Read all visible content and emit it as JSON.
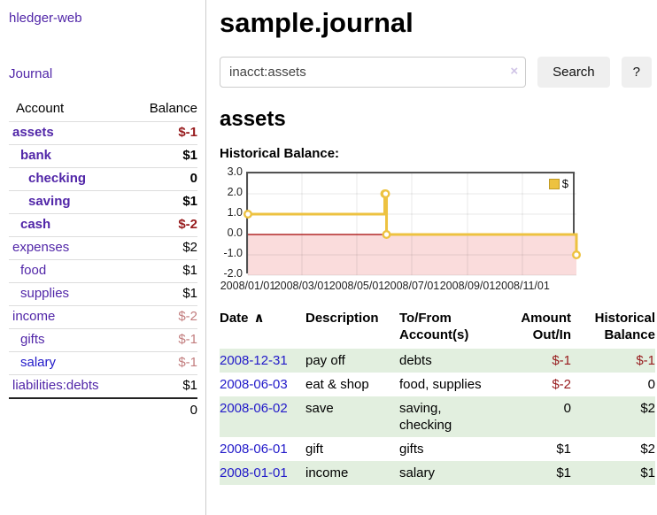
{
  "colors": {
    "link_purple": "#5126a8",
    "link_blue": "#2119c9",
    "negative_strong": "#971b1d",
    "negative_muted": "#c27d7e",
    "row_stripe_green": "#e2efdf",
    "button_gray": "#efefef",
    "chart_line_gold": "#EDC240",
    "chart_negative_fill": "#fadcdc",
    "chart_zero_line": "#a40000"
  },
  "sidebar": {
    "brand": "hledger-web",
    "journal_label": "Journal",
    "account_header": "Account",
    "balance_header": "Balance",
    "rows": [
      {
        "account": "assets",
        "balance": "$-1",
        "depth": 1,
        "bold": true,
        "balance_class": "neg-strong"
      },
      {
        "account": "bank",
        "balance": "$1",
        "depth": 2,
        "bold": true,
        "balance_class": ""
      },
      {
        "account": "checking",
        "balance": "0",
        "depth": 3,
        "bold": true,
        "balance_class": ""
      },
      {
        "account": "saving",
        "balance": "$1",
        "depth": 3,
        "bold": true,
        "balance_class": ""
      },
      {
        "account": "cash",
        "balance": "$-2",
        "depth": 2,
        "bold": true,
        "balance_class": "neg-strong"
      },
      {
        "account": "expenses",
        "balance": "$2",
        "depth": 1,
        "bold": false,
        "balance_class": ""
      },
      {
        "account": "food",
        "balance": "$1",
        "depth": 2,
        "bold": false,
        "balance_class": ""
      },
      {
        "account": "supplies",
        "balance": "$1",
        "depth": 2,
        "bold": false,
        "balance_class": ""
      },
      {
        "account": "income",
        "balance": "$-2",
        "depth": 1,
        "bold": false,
        "balance_class": "neg-muted"
      },
      {
        "account": "gifts",
        "balance": "$-1",
        "depth": 2,
        "bold": false,
        "balance_class": "neg-muted"
      },
      {
        "account": "salary",
        "balance": "$-1",
        "depth": 2,
        "bold": false,
        "balance_class": "neg-muted",
        "link_color": "blue"
      },
      {
        "account": "liabilities:debts",
        "balance": "$1",
        "depth": 1,
        "bold": false,
        "balance_class": ""
      }
    ],
    "total": "0"
  },
  "main": {
    "title": "sample.journal",
    "search": {
      "value": "inacct:assets",
      "clear_icon": "×",
      "button_label": "Search",
      "help_label": "?"
    },
    "account_heading": "assets",
    "chart_label": "Historical Balance:"
  },
  "chart_data": {
    "type": "line",
    "title": "Historical Balance:",
    "step": true,
    "xlim": [
      "2008-01-01",
      "2008-12-31"
    ],
    "ylim": [
      -2,
      3
    ],
    "yticks": [
      "3.0",
      "2.0",
      "1.0",
      "0.0",
      "-1.0",
      "-2.0"
    ],
    "xticks": [
      "2008/01/01",
      "2008/03/01",
      "2008/05/01",
      "2008/07/01",
      "2008/09/01",
      "2008/11/01"
    ],
    "grid": true,
    "legend_position": "top-right",
    "series": [
      {
        "name": "$",
        "color": "#EDC240",
        "points": [
          [
            "2008-01-01",
            1
          ],
          [
            "2008-06-01",
            2
          ],
          [
            "2008-06-02",
            2
          ],
          [
            "2008-06-03",
            0
          ],
          [
            "2008-12-31",
            -1
          ]
        ]
      }
    ],
    "negative_region_fill": "#fadcdc",
    "zero_line_color": "#a40000"
  },
  "register": {
    "sort_icon": "∧",
    "columns": [
      {
        "label": "Date",
        "align": "left",
        "sorted": true
      },
      {
        "label": "Description",
        "align": "left"
      },
      {
        "label": "To/From Account(s)",
        "align": "left"
      },
      {
        "label": "Amount Out/In",
        "align": "right"
      },
      {
        "label": "Historical Balance",
        "align": "right"
      }
    ],
    "rows": [
      {
        "date": "2008-12-31",
        "description": "pay off",
        "accounts": "debts",
        "amount": "$-1",
        "balance": "$-1"
      },
      {
        "date": "2008-06-03",
        "description": "eat & shop",
        "accounts": "food, supplies",
        "amount": "$-2",
        "balance": "0"
      },
      {
        "date": "2008-06-02",
        "description": "save",
        "accounts": "saving, checking",
        "amount": "0",
        "balance": "$2"
      },
      {
        "date": "2008-06-01",
        "description": "gift",
        "accounts": "gifts",
        "amount": "$1",
        "balance": "$2"
      },
      {
        "date": "2008-01-01",
        "description": "income",
        "accounts": "salary",
        "amount": "$1",
        "balance": "$1"
      }
    ]
  }
}
